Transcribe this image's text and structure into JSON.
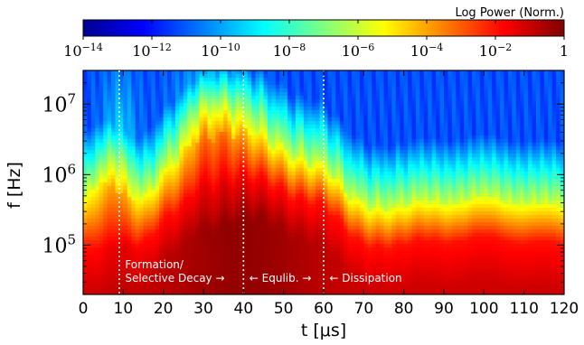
{
  "chart_data": {
    "type": "heatmap",
    "title": "",
    "xlabel": "t [μs]",
    "ylabel": "f [Hz]",
    "xlim": [
      0,
      120
    ],
    "ylim": [
      20000,
      30000000
    ],
    "y_scale": "log",
    "x_ticks": [
      "0",
      "10",
      "20",
      "30",
      "40",
      "50",
      "60",
      "70",
      "80",
      "90",
      "100",
      "110",
      "120"
    ],
    "y_ticks": [
      {
        "value": 100000,
        "label": "10^5"
      },
      {
        "value": 1000000,
        "label": "10^6"
      },
      {
        "value": 10000000,
        "label": "10^7"
      }
    ],
    "colorbar": {
      "label": "Log Power (Norm.)",
      "scale": "log",
      "range": [
        1e-14,
        1
      ],
      "ticks": [
        {
          "value": 1e-14,
          "label": "10^-14"
        },
        {
          "value": 1e-12,
          "label": "10^-12"
        },
        {
          "value": 1e-10,
          "label": "10^-10"
        },
        {
          "value": 1e-08,
          "label": "10^-8"
        },
        {
          "value": 1e-06,
          "label": "10^-6"
        },
        {
          "value": 0.0001,
          "label": "10^-4"
        },
        {
          "value": 0.01,
          "label": "10^-2"
        },
        {
          "value": 1,
          "label": "1"
        }
      ],
      "colormap": "jet"
    },
    "vertical_lines": [
      9,
      40,
      60
    ],
    "annotations": [
      {
        "lines": [
          "Formation/",
          "Selective Decay →"
        ],
        "x": 10
      },
      {
        "lines": [
          "← Equlib. →"
        ],
        "x": 41
      },
      {
        "lines": [
          "← Dissipation"
        ],
        "x": 61
      }
    ],
    "colors": {
      "jet": [
        "#00008f",
        "#0000ff",
        "#00ffff",
        "#ffff00",
        "#ff0000",
        "#800000"
      ]
    }
  }
}
